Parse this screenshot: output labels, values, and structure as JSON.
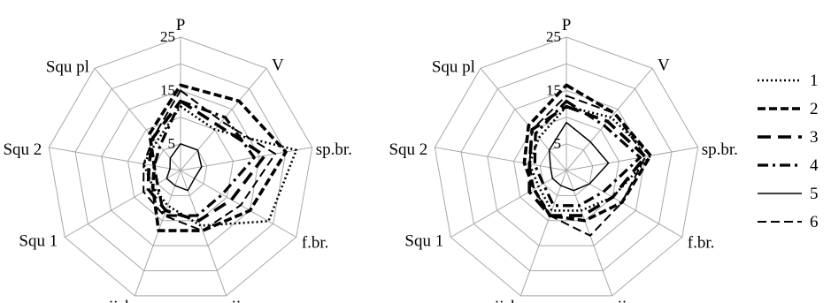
{
  "chart_data": [
    {
      "type": "radar",
      "axes": [
        "P",
        "V",
        "sp.br.",
        "f.br.",
        "jj",
        "jjsk",
        "Squ 1",
        "Squ 2",
        "Squ pl"
      ],
      "ticks": [
        "5",
        "15",
        "25"
      ],
      "rlim": [
        0,
        25
      ],
      "series": [
        {
          "name": "1",
          "values": [
            12,
            10,
            22,
            19,
            11,
            7,
            6,
            7,
            7
          ]
        },
        {
          "name": "2",
          "values": [
            16,
            17,
            20,
            15,
            12,
            12,
            6,
            5,
            9
          ]
        },
        {
          "name": "3",
          "values": [
            13,
            11,
            16,
            11,
            10,
            8,
            7,
            6,
            8
          ]
        },
        {
          "name": "4",
          "values": [
            13,
            13,
            14,
            9,
            9,
            9,
            5,
            5,
            6
          ]
        },
        {
          "name": "5",
          "values": [
            5,
            5,
            4,
            3,
            4,
            3,
            3,
            2,
            3
          ]
        },
        {
          "name": "6",
          "values": [
            15,
            12,
            18,
            13,
            12,
            9,
            8,
            7,
            8
          ]
        }
      ]
    },
    {
      "type": "radar",
      "axes": [
        "P",
        "V",
        "sp.br.",
        "f.br.",
        "jj",
        "jjsk",
        "Squ 1",
        "Squ 2",
        "Squ pl"
      ],
      "ticks": [
        "5",
        "15",
        "25"
      ],
      "rlim": [
        0,
        25
      ],
      "series": [
        {
          "name": "1",
          "values": [
            12,
            13,
            16,
            10,
            8,
            8,
            6,
            7,
            8
          ]
        },
        {
          "name": "2",
          "values": [
            16,
            14,
            16,
            12,
            10,
            9,
            7,
            8,
            11
          ]
        },
        {
          "name": "3",
          "values": [
            12,
            12,
            15,
            10,
            9,
            9,
            8,
            7,
            10
          ]
        },
        {
          "name": "4",
          "values": [
            13,
            11,
            14,
            8,
            7,
            7,
            5,
            6,
            9
          ]
        },
        {
          "name": "5",
          "values": [
            9,
            7,
            8,
            5,
            4,
            3,
            3,
            3,
            5
          ]
        },
        {
          "name": "6",
          "values": [
            14,
            14,
            15,
            12,
            13,
            9,
            7,
            7,
            10
          ]
        }
      ]
    }
  ],
  "legend": [
    {
      "label": "1"
    },
    {
      "label": "2"
    },
    {
      "label": "3"
    },
    {
      "label": "4"
    },
    {
      "label": "5"
    },
    {
      "label": "6"
    }
  ]
}
